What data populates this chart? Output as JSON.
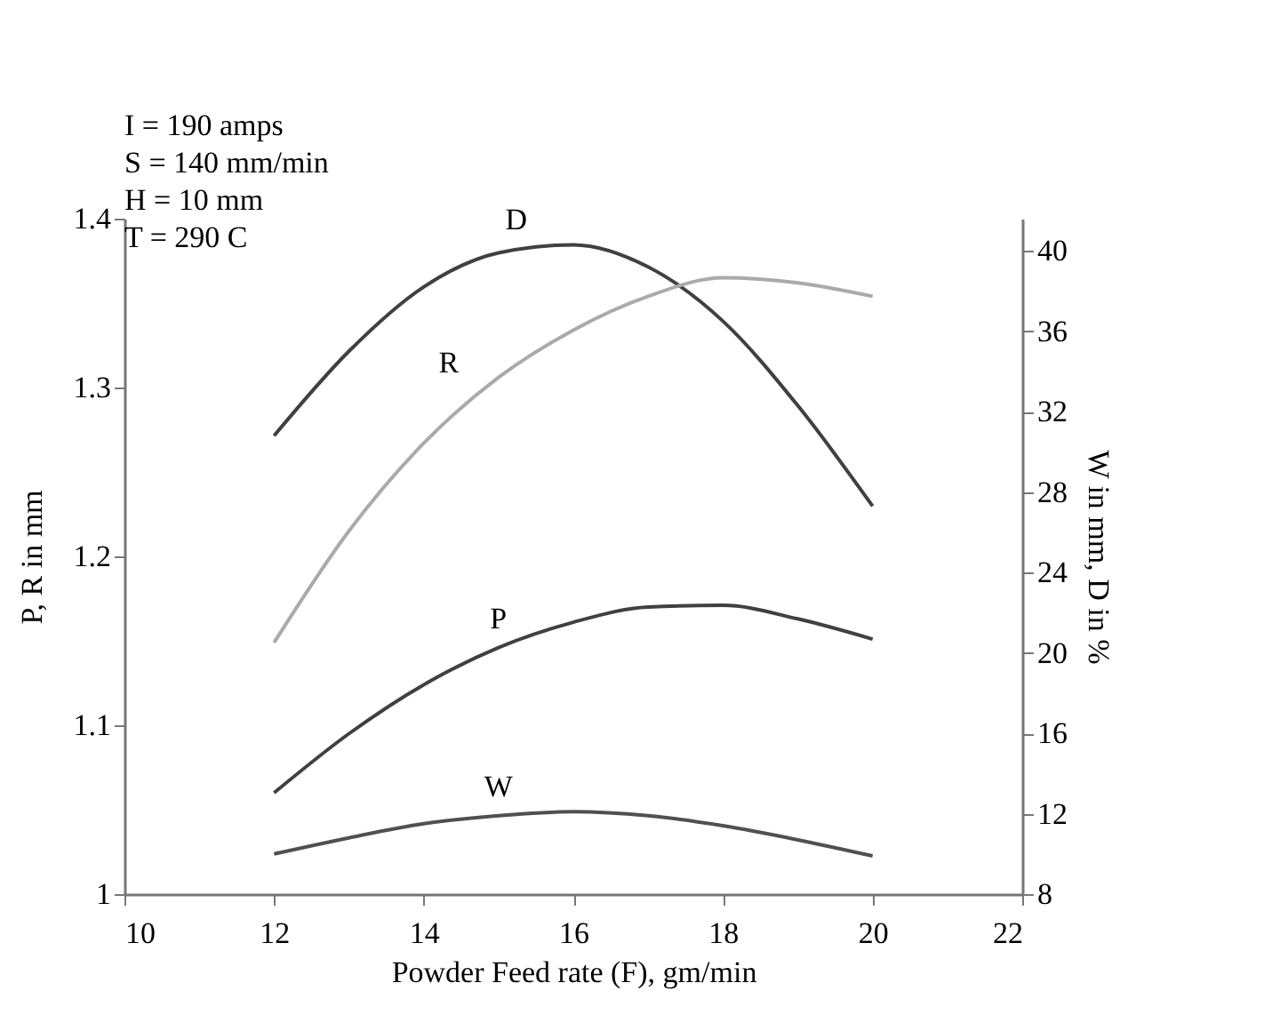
{
  "chart_data": {
    "type": "line",
    "xlabel": "Powder Feed rate (F), gm/min",
    "ylabel": "P, R in mm",
    "y2label": "W in mm, D in %",
    "annotations": [
      "I = 190 amps",
      "S = 140 mm/min",
      "H = 10 mm",
      "T = 290 C"
    ],
    "x": [
      12,
      13,
      14,
      15,
      16,
      17,
      18,
      19,
      20
    ],
    "series": [
      {
        "name": "D",
        "color": "#404040",
        "axis": "y2",
        "values": [
          30.8,
          35.0,
          38.2,
          39.9,
          40.3,
          39.2,
          36.5,
          32.3,
          27.3
        ]
      },
      {
        "name": "R",
        "color": "#aaaaaa",
        "values": [
          1.149,
          1.215,
          1.267,
          1.306,
          1.334,
          1.354,
          1.365,
          1.362,
          1.354
        ]
      },
      {
        "name": "P",
        "color": "#404040",
        "values": [
          1.06,
          1.095,
          1.124,
          1.146,
          1.161,
          1.17,
          1.171,
          1.163,
          1.151
        ]
      },
      {
        "name": "W",
        "color": "#505050",
        "axis": "y2",
        "values": [
          10.0,
          10.8,
          11.5,
          11.9,
          12.1,
          11.9,
          11.4,
          10.7,
          9.9
        ]
      }
    ],
    "xlim": [
      10,
      22
    ],
    "xticks": [
      10,
      12,
      14,
      16,
      18,
      20,
      22
    ],
    "ylim": [
      1,
      1.4
    ],
    "yticks": [
      1,
      1.1,
      1.2,
      1.3,
      1.4
    ],
    "y2lim": [
      8,
      41.6
    ],
    "y2ticks": [
      8,
      12,
      16,
      20,
      24,
      28,
      32,
      36,
      40
    ],
    "grid": false,
    "marker": "none",
    "line_style": "solid"
  }
}
